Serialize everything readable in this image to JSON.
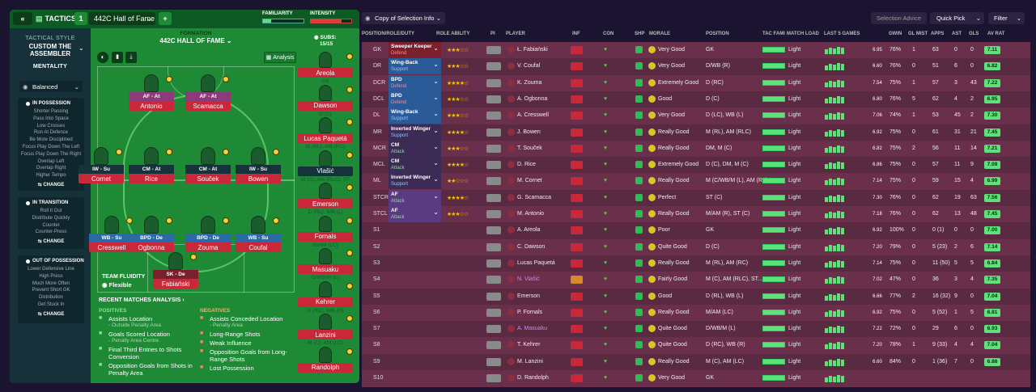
{
  "header": {
    "tactics_label": "TACTICS",
    "slot": "1",
    "tactic_name": "442C Hall of Fame",
    "add": "+",
    "familiarity": "FAMILIARITY",
    "intensity": "INTENSITY"
  },
  "style": {
    "label": "TACTICAL STYLE",
    "name1": "CUSTOM THE",
    "name2": "ASSEMBLER",
    "mentality_label": "MENTALITY",
    "mentality": "Balanced",
    "in_possession": {
      "title": "IN POSSESSION",
      "items": [
        "Shorter Passing",
        "Pass Into Space",
        "Low Crosses",
        "Run At Defence",
        "Be More Disciplined",
        "Focus Play Down The Left",
        "Focus Play Down The Right",
        "Overlap Left",
        "Overlap Right",
        "Higher Tempo"
      ]
    },
    "in_transition": {
      "title": "IN TRANSITION",
      "items": [
        "Roll It Out",
        "Distribute Quickly",
        "Counter",
        "Counter-Press"
      ]
    },
    "out_possession": {
      "title": "OUT OF POSSESSION",
      "items": [
        "Lower Defensive Line",
        "High Press",
        "Much More Often",
        "Prevent Short GK",
        "Distribution",
        "Get Stuck In"
      ]
    },
    "change": "CHANGE"
  },
  "formation": {
    "label": "FORMATION",
    "name": "442C HALL OF FAME",
    "subs_label": "SUBS:",
    "subs_count": "15/15",
    "analysis": "Analysis",
    "fluidity_label": "TEAM FLUIDITY",
    "fluidity": "Flexible"
  },
  "pitch_players": [
    {
      "role": "AF - At",
      "name": "Antonio"
    },
    {
      "role": "AF - At",
      "name": "Scamacca"
    },
    {
      "role": "IW - Su",
      "name": "Cornet"
    },
    {
      "role": "CM - At",
      "name": "Rice"
    },
    {
      "role": "CM - At",
      "name": "Souček"
    },
    {
      "role": "IW - Su",
      "name": "Bowen"
    },
    {
      "role": "WB - Su",
      "name": "Cresswell"
    },
    {
      "role": "BPD - De",
      "name": "Ogbonna"
    },
    {
      "role": "BPD - De",
      "name": "Zouma"
    },
    {
      "role": "WB - Su",
      "name": "Coufal"
    },
    {
      "role": "SK - De",
      "name": "Fabiański"
    }
  ],
  "subs": [
    {
      "name": "Areola",
      "pos": "GK"
    },
    {
      "name": "Dawson",
      "pos": "D (C)"
    },
    {
      "name": "Lucas Paquetá",
      "pos": "M (RL), AM (RC)"
    },
    {
      "name": "Vlašić",
      "pos": "M (C), AM (RLC), ST (C)"
    },
    {
      "name": "Emerson",
      "pos": "D (RL), WB (L)"
    },
    {
      "name": "Fornals",
      "pos": "M/AM (LC)"
    },
    {
      "name": "Masuaku",
      "pos": "D/WB/M (L)"
    },
    {
      "name": "Kehrer",
      "pos": "D (RC), WB (R)"
    },
    {
      "name": "Lanzini",
      "pos": "M (C), AM (LC)"
    },
    {
      "name": "Randolph",
      "pos": ""
    }
  ],
  "analysis": {
    "title": "RECENT MATCHES ANALYSIS",
    "pos_label": "POSITIVES",
    "neg_label": "NEGATIVES",
    "positives": [
      {
        "t": "Assists Location",
        "s": "- Outside Penalty Area"
      },
      {
        "t": "Goals Scored Location",
        "s": "- Penalty Area Centre"
      },
      {
        "t": "Final Third Entries to Shots Conversion",
        "s": ""
      },
      {
        "t": "Opposition Goals from Shots in Penalty Area",
        "s": ""
      }
    ],
    "negatives": [
      {
        "t": "Assists Conceded Location",
        "s": "- Penalty Area"
      },
      {
        "t": "Long-Range Shots",
        "s": ""
      },
      {
        "t": "Weak Influence",
        "s": ""
      },
      {
        "t": "Opposition Goals from Long-Range Shots",
        "s": ""
      },
      {
        "t": "Lost Possession",
        "s": ""
      }
    ]
  },
  "toolbar": {
    "view": "Copy of Selection Info",
    "advice": "Selection Advice",
    "quick_pick": "Quick Pick",
    "filter": "Filter"
  },
  "columns": [
    "POSITION/ROLE/DUTY",
    "ROLE ABILITY",
    "PI",
    "PLAYER",
    "INF",
    "CON",
    "SHP",
    "MORALE",
    "POSITION",
    "TAC FAMI",
    "MATCH LOAD",
    "LAST 5 GAMES",
    "GWIN",
    "GL MIST",
    "APPS",
    "AST",
    "GLS",
    "AV RAT"
  ],
  "rows": [
    {
      "pos": "GK",
      "role": "Sweeper Keeper",
      "duty": "Defend",
      "stars": "★★★☆☆",
      "player": "Ł. Fabiański",
      "morale": "Very Good",
      "position": "GK",
      "load": "Light",
      "l5": "6.95",
      "gwin": "76%",
      "glm": "1",
      "apps": "63",
      "ast": "0",
      "gls": "0",
      "avr": "7.11"
    },
    {
      "pos": "DR",
      "role": "Wing-Back",
      "duty": "Support",
      "stars": "★★★☆☆",
      "player": "V. Coufal",
      "morale": "Very Good",
      "position": "D/WB (R)",
      "load": "Light",
      "l5": "6.60",
      "gwin": "76%",
      "glm": "0",
      "apps": "51",
      "ast": "6",
      "gls": "0",
      "avr": "6.82"
    },
    {
      "pos": "DCR",
      "role": "BPD",
      "duty": "Defend",
      "stars": "★★★★☆",
      "player": "K. Zouma",
      "morale": "Extremely Good",
      "position": "D (RC)",
      "load": "Light",
      "l5": "7.54",
      "gwin": "75%",
      "glm": "1",
      "apps": "57",
      "ast": "3",
      "gls": "43",
      "avr": "7.22"
    },
    {
      "pos": "DCL",
      "role": "BPD",
      "duty": "Defend",
      "stars": "★★★☆☆",
      "player": "A. Ogbonna",
      "morale": "Good",
      "position": "D (C)",
      "load": "Light",
      "l5": "6.80",
      "gwin": "76%",
      "glm": "5",
      "apps": "62",
      "ast": "4",
      "gls": "2",
      "avr": "6.95"
    },
    {
      "pos": "DL",
      "role": "Wing-Back",
      "duty": "Support",
      "stars": "★★★☆☆",
      "player": "A. Cresswell",
      "morale": "Very Good",
      "position": "D (LC), WB (L)",
      "load": "Light",
      "l5": "7.06",
      "gwin": "74%",
      "glm": "1",
      "apps": "53",
      "ast": "45",
      "gls": "2",
      "avr": "7.30"
    },
    {
      "pos": "MR",
      "role": "Inverted Winger",
      "duty": "Support",
      "stars": "★★★★☆",
      "player": "J. Bowen",
      "morale": "Really Good",
      "position": "M (RL), AM (RLC)",
      "load": "Light",
      "l5": "6.92",
      "gwin": "75%",
      "glm": "0",
      "apps": "61",
      "ast": "31",
      "gls": "21",
      "avr": "7.45"
    },
    {
      "pos": "MCR",
      "role": "CM",
      "duty": "Attack",
      "stars": "★★★☆☆",
      "player": "T. Souček",
      "morale": "Really Good",
      "position": "DM, M (C)",
      "load": "Light",
      "l5": "6.82",
      "gwin": "75%",
      "glm": "2",
      "apps": "56",
      "ast": "11",
      "gls": "14",
      "avr": "7.21"
    },
    {
      "pos": "MCL",
      "role": "CM",
      "duty": "Attack",
      "stars": "★★★★☆",
      "player": "D. Rice",
      "morale": "Extremely Good",
      "position": "D (C), DM, M (C)",
      "load": "Light",
      "l5": "6.86",
      "gwin": "75%",
      "glm": "0",
      "apps": "57",
      "ast": "11",
      "gls": "9",
      "avr": "7.09"
    },
    {
      "pos": "ML",
      "role": "Inverted Winger",
      "duty": "Support",
      "stars": "★★☆☆☆",
      "player": "M. Cornet",
      "morale": "Really Good",
      "position": "M (C/WB/M (L), AM (RL)",
      "load": "Light",
      "l5": "7.14",
      "gwin": "75%",
      "glm": "0",
      "apps": "59",
      "ast": "15",
      "gls": "4",
      "avr": "6.99"
    },
    {
      "pos": "STCR",
      "role": "AF",
      "duty": "Attack",
      "stars": "★★★★☆",
      "player": "G. Scamacca",
      "morale": "Perfect",
      "position": "ST (C)",
      "load": "Light",
      "l5": "7.30",
      "gwin": "76%",
      "glm": "0",
      "apps": "62",
      "ast": "19",
      "gls": "63",
      "avr": "7.56"
    },
    {
      "pos": "STCL",
      "role": "AF",
      "duty": "Attack",
      "stars": "★★★☆☆",
      "player": "M. Antonio",
      "morale": "Really Good",
      "position": "M/AM (R), ST (C)",
      "load": "Light",
      "l5": "7.18",
      "gwin": "76%",
      "glm": "0",
      "apps": "62",
      "ast": "13",
      "gls": "48",
      "avr": "7.45"
    },
    {
      "pos": "S1",
      "role": "",
      "duty": "",
      "stars": "",
      "player": "A. Areola",
      "morale": "Poor",
      "position": "GK",
      "load": "Light",
      "l5": "6.92",
      "gwin": "100%",
      "glm": "0",
      "apps": "0 (1)",
      "ast": "0",
      "gls": "0",
      "avr": "7.00"
    },
    {
      "pos": "S2",
      "role": "",
      "duty": "",
      "stars": "",
      "player": "C. Dawson",
      "morale": "Quite Good",
      "position": "D (C)",
      "load": "Light",
      "l5": "7.20",
      "gwin": "79%",
      "glm": "0",
      "apps": "5 (23)",
      "ast": "2",
      "gls": "6",
      "avr": "7.14"
    },
    {
      "pos": "S3",
      "role": "",
      "duty": "",
      "stars": "",
      "player": "Lucas Paquetá",
      "morale": "Really Good",
      "position": "M (RL), AM (RC)",
      "load": "Light",
      "l5": "7.14",
      "gwin": "75%",
      "glm": "0",
      "apps": "11 (50)",
      "ast": "5",
      "gls": "5",
      "avr": "6.84"
    },
    {
      "pos": "S4",
      "role": "",
      "duty": "",
      "stars": "",
      "player": "N. Vlašić",
      "morale": "Fairly Good",
      "position": "M (C), AM (RLC), ST...",
      "load": "Light",
      "l5": "7.02",
      "gwin": "47%",
      "glm": "0",
      "apps": "36",
      "ast": "3",
      "gls": "4",
      "avr": "7.35"
    },
    {
      "pos": "S5",
      "role": "",
      "duty": "",
      "stars": "",
      "player": "Emerson",
      "morale": "Good",
      "position": "D (RL), WB (L)",
      "load": "Light",
      "l5": "6.66",
      "gwin": "77%",
      "glm": "2",
      "apps": "16 (32)",
      "ast": "9",
      "gls": "0",
      "avr": "7.04"
    },
    {
      "pos": "S6",
      "role": "",
      "duty": "",
      "stars": "",
      "player": "P. Fornals",
      "morale": "Really Good",
      "position": "M/AM (LC)",
      "load": "Light",
      "l5": "6.92",
      "gwin": "75%",
      "glm": "0",
      "apps": "5 (52)",
      "ast": "1",
      "gls": "5",
      "avr": "6.81"
    },
    {
      "pos": "S7",
      "role": "",
      "duty": "",
      "stars": "",
      "player": "A. Masuaku",
      "morale": "Quite Good",
      "position": "D/WB/M (L)",
      "load": "Light",
      "l5": "7.22",
      "gwin": "72%",
      "glm": "0",
      "apps": "29",
      "ast": "6",
      "gls": "0",
      "avr": "6.93"
    },
    {
      "pos": "S8",
      "role": "",
      "duty": "",
      "stars": "",
      "player": "T. Kehrer",
      "morale": "Quite Good",
      "position": "D (RC), WB (R)",
      "load": "Light",
      "l5": "7.20",
      "gwin": "78%",
      "glm": "1",
      "apps": "9 (33)",
      "ast": "4",
      "gls": "4",
      "avr": "7.04"
    },
    {
      "pos": "S9",
      "role": "",
      "duty": "",
      "stars": "",
      "player": "M. Lanzini",
      "morale": "Really Good",
      "position": "M (C), AM (LC)",
      "load": "Light",
      "l5": "6.60",
      "gwin": "84%",
      "glm": "0",
      "apps": "1 (36)",
      "ast": "7",
      "gls": "0",
      "avr": "6.88"
    },
    {
      "pos": "S10",
      "role": "",
      "duty": "",
      "stars": "",
      "player": "D. Randolph",
      "morale": "Very Good",
      "position": "GK",
      "load": "Light",
      "l5": "",
      "gwin": "",
      "glm": "",
      "apps": "",
      "ast": "",
      "gls": "",
      "avr": ""
    }
  ]
}
